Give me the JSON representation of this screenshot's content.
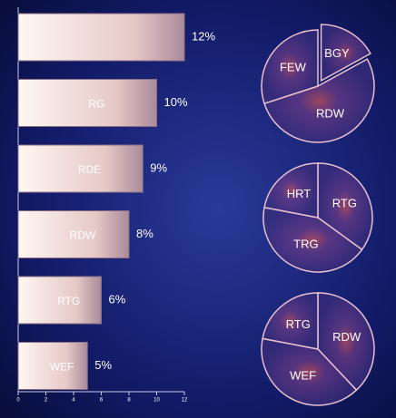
{
  "chart_data": [
    {
      "type": "bar",
      "orientation": "horizontal",
      "categories": [
        null,
        "RG",
        "RDE",
        "RDW",
        "RTG",
        "WEF"
      ],
      "values": [
        12,
        10,
        9,
        8,
        6,
        5
      ],
      "value_labels": [
        "12%",
        "10%",
        "9%",
        "8%",
        "6%",
        "5%"
      ],
      "xlim": [
        0,
        12
      ],
      "xticks": [
        0,
        2,
        4,
        6,
        8,
        10,
        12
      ],
      "color": "#e9d3d0"
    },
    {
      "type": "pie",
      "categories": [
        "BGY",
        "RDW",
        "FEW"
      ],
      "values": [
        17,
        53,
        30
      ],
      "color": "#5a3f8c"
    },
    {
      "type": "pie",
      "categories": [
        "RTG",
        "TRG",
        "HRT"
      ],
      "values": [
        35,
        43,
        22
      ],
      "color": "#5a3f8c"
    },
    {
      "type": "pie",
      "categories": [
        "RDW",
        "WEF",
        "RTG"
      ],
      "values": [
        38,
        40,
        22
      ],
      "color": "#5a3f8c"
    }
  ]
}
